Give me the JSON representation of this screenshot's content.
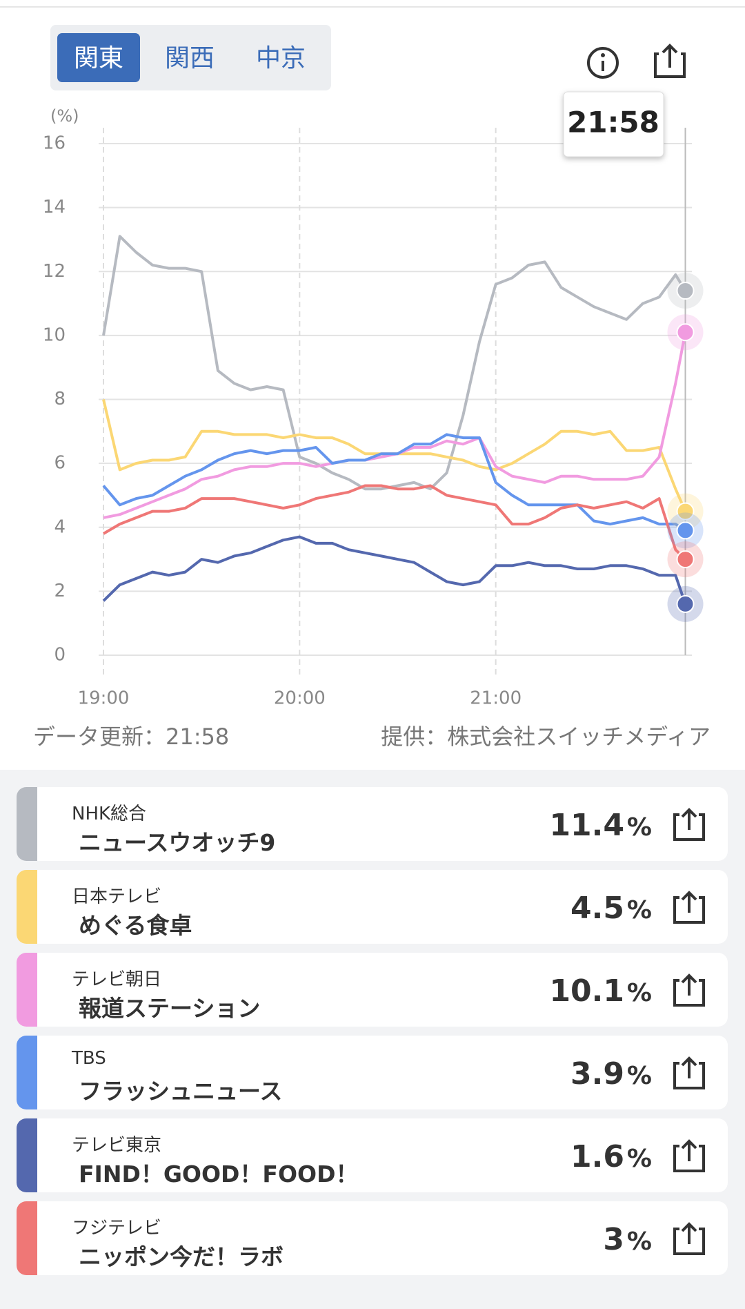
{
  "tabs": [
    "関東",
    "関西",
    "中京"
  ],
  "chart_data": {
    "type": "line",
    "y_label": "(%)",
    "tooltip": "21:58",
    "unit_label": "%",
    "x": [
      0,
      5,
      10,
      15,
      20,
      25,
      30,
      35,
      40,
      45,
      50,
      55,
      60,
      65,
      70,
      75,
      80,
      85,
      90,
      95,
      100,
      105,
      110,
      115,
      120,
      125,
      130,
      135,
      140,
      145,
      150,
      155,
      160,
      165,
      170,
      175,
      178
    ],
    "xlim": [
      0,
      180
    ],
    "xticks": [
      {
        "value": 0,
        "label": "19:00"
      },
      {
        "value": 60,
        "label": "20:00"
      },
      {
        "value": 120,
        "label": "21:00"
      }
    ],
    "ylim": [
      0,
      16
    ],
    "yticks": [
      0,
      2,
      4,
      6,
      8,
      10,
      12,
      14,
      16
    ],
    "grid": true,
    "series": [
      {
        "name": "NHK総合",
        "program": "ニュースウオッチ9",
        "color": "#b6bac1",
        "values": [
          10,
          13.1,
          12.6,
          12.2,
          12.1,
          12.1,
          12.0,
          8.9,
          8.5,
          8.3,
          8.4,
          8.3,
          6.2,
          6.0,
          5.7,
          5.5,
          5.2,
          5.2,
          5.3,
          5.4,
          5.2,
          5.7,
          7.5,
          9.8,
          11.6,
          11.8,
          12.2,
          12.3,
          11.5,
          11.2,
          10.9,
          10.7,
          10.5,
          11.0,
          11.2,
          11.9,
          11.4
        ]
      },
      {
        "name": "日本テレビ",
        "program": "めぐる食卓",
        "color": "#fbd774",
        "values": [
          8,
          5.8,
          6.0,
          6.1,
          6.1,
          6.2,
          7.0,
          7.0,
          6.9,
          6.9,
          6.9,
          6.8,
          6.9,
          6.8,
          6.8,
          6.6,
          6.3,
          6.3,
          6.3,
          6.3,
          6.3,
          6.2,
          6.1,
          5.9,
          5.8,
          6.0,
          6.3,
          6.6,
          7.0,
          7.0,
          6.9,
          7.0,
          6.4,
          6.4,
          6.5,
          5.2,
          4.5
        ]
      },
      {
        "name": "テレビ朝日",
        "program": "報道ステーション",
        "color": "#f19be0",
        "values": [
          4.3,
          4.4,
          4.6,
          4.8,
          5.0,
          5.2,
          5.5,
          5.6,
          5.8,
          5.9,
          5.9,
          6.0,
          6.0,
          5.9,
          6.0,
          6.1,
          6.1,
          6.2,
          6.3,
          6.5,
          6.5,
          6.7,
          6.6,
          6.8,
          5.9,
          5.6,
          5.5,
          5.4,
          5.6,
          5.6,
          5.5,
          5.5,
          5.5,
          5.6,
          6.2,
          8.5,
          10.1
        ]
      },
      {
        "name": "TBS",
        "program": "フラッシュニュース",
        "color": "#6495ed",
        "values": [
          5.3,
          4.7,
          4.9,
          5.0,
          5.3,
          5.6,
          5.8,
          6.1,
          6.3,
          6.4,
          6.3,
          6.4,
          6.4,
          6.5,
          6.0,
          6.1,
          6.1,
          6.3,
          6.3,
          6.6,
          6.6,
          6.9,
          6.8,
          6.8,
          5.4,
          5.0,
          4.7,
          4.7,
          4.7,
          4.7,
          4.2,
          4.1,
          4.2,
          4.3,
          4.1,
          4.1,
          3.9
        ]
      },
      {
        "name": "テレビ東京",
        "program": "FIND！GOOD！FOOD！",
        "color": "#5468ae",
        "values": [
          1.7,
          2.2,
          2.4,
          2.6,
          2.5,
          2.6,
          3.0,
          2.9,
          3.1,
          3.2,
          3.4,
          3.6,
          3.7,
          3.5,
          3.5,
          3.3,
          3.2,
          3.1,
          3.0,
          2.9,
          2.6,
          2.3,
          2.2,
          2.3,
          2.8,
          2.8,
          2.9,
          2.8,
          2.8,
          2.7,
          2.7,
          2.8,
          2.8,
          2.7,
          2.5,
          2.5,
          1.6
        ]
      },
      {
        "name": "フジテレビ",
        "program": "ニッポン今だ！ラボ",
        "color": "#ef7776",
        "values": [
          3.8,
          4.1,
          4.3,
          4.5,
          4.5,
          4.6,
          4.9,
          4.9,
          4.9,
          4.8,
          4.7,
          4.6,
          4.7,
          4.9,
          5.0,
          5.1,
          5.3,
          5.3,
          5.2,
          5.2,
          5.3,
          5.0,
          4.9,
          4.8,
          4.7,
          4.1,
          4.1,
          4.3,
          4.6,
          4.7,
          4.6,
          4.7,
          4.8,
          4.6,
          4.9,
          3.3,
          3.0
        ]
      }
    ]
  },
  "updated": "データ更新：21:58",
  "source": "提供：株式会社スイッチメディア"
}
